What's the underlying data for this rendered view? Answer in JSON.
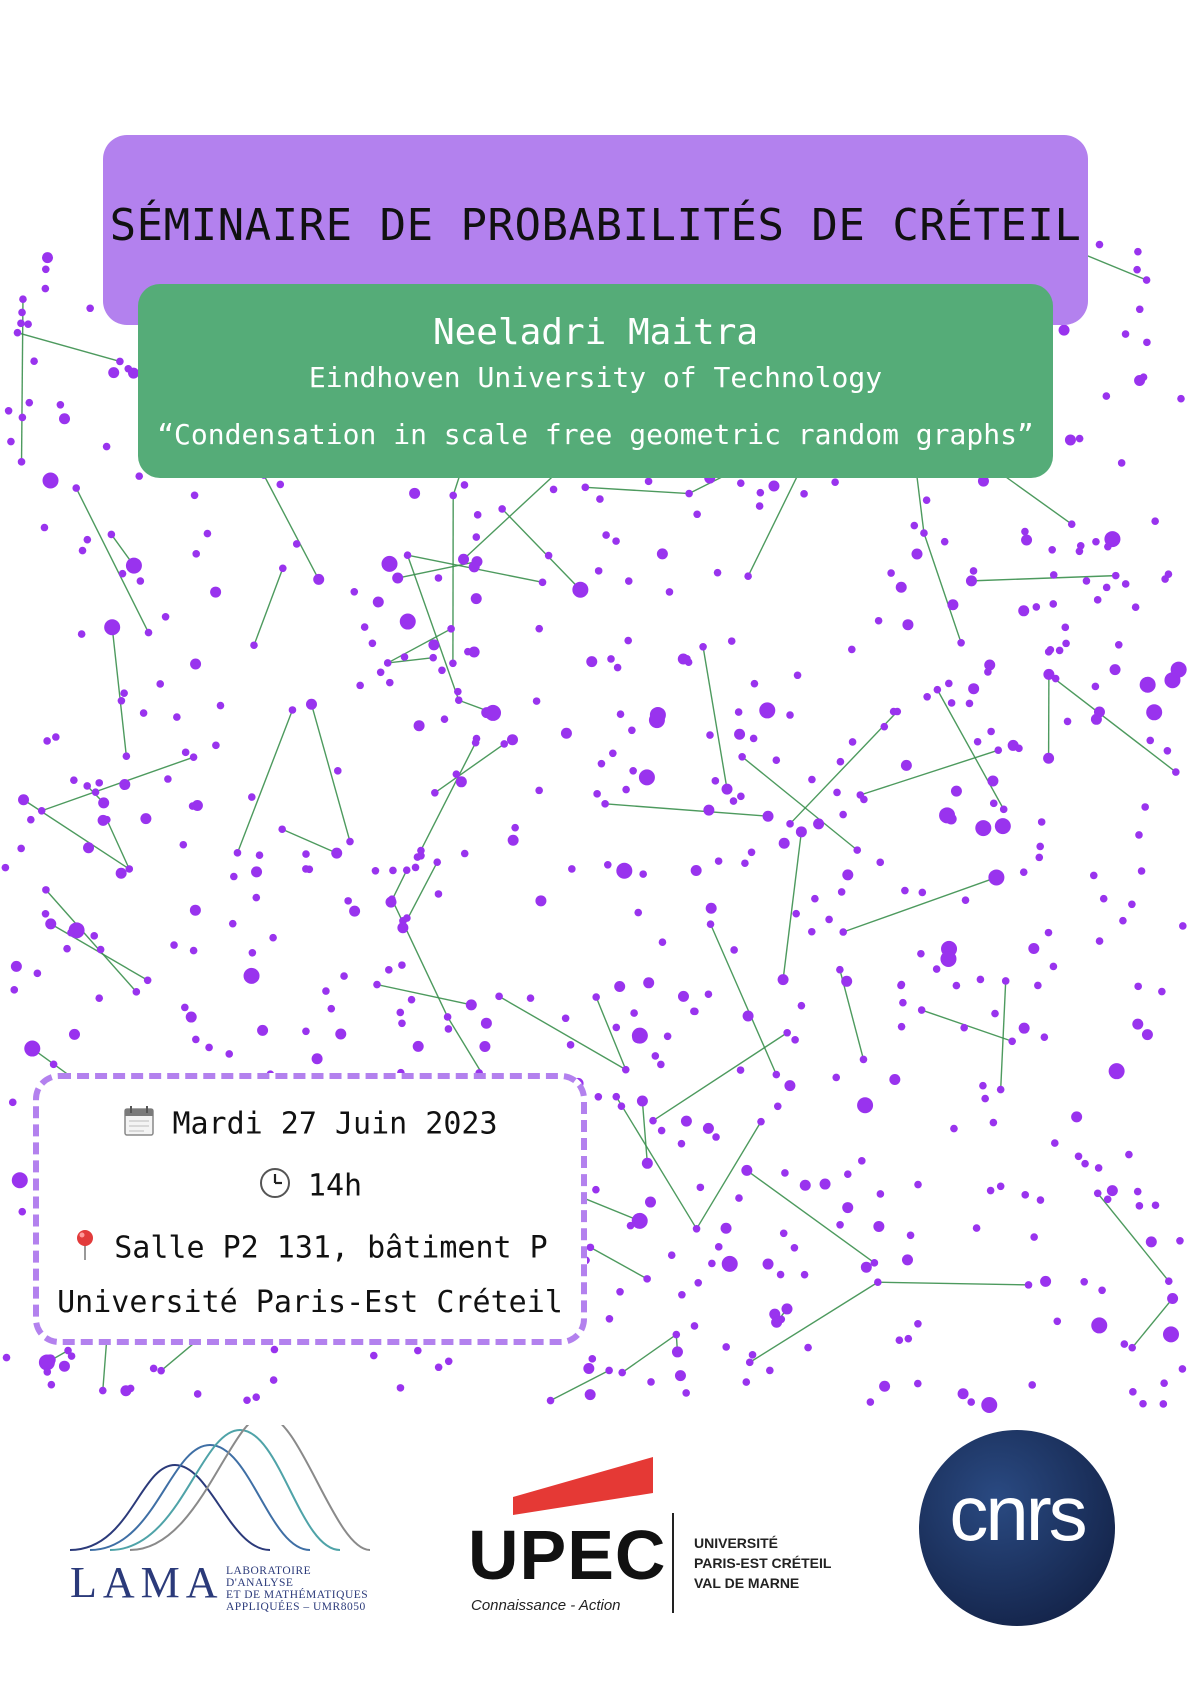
{
  "seminar": {
    "title": "SÉMINAIRE DE PROBABILITÉS DE CRÉTEIL"
  },
  "speaker": {
    "name": "Neeladri Maitra",
    "affiliation": "Eindhoven University of Technology",
    "talk_title": "“Condensation in scale free geometric random graphs”"
  },
  "event": {
    "date": "Mardi 27 Juin 2023",
    "time": "14h",
    "room": "Salle P2 131, bâtiment P",
    "university": "Université Paris-Est Créteil"
  },
  "icons": {
    "date": "calendar-icon",
    "time": "clock-icon",
    "room": "pin-icon"
  },
  "logos": {
    "lama": {
      "word": "LAMA",
      "subtitle_lines": [
        "LABORATOIRE D'ANALYSE",
        "ET DE MATHÉMATIQUES",
        "APPLIQUÉES – UMR8050"
      ]
    },
    "upec": {
      "word": "UPEC",
      "tagline": "Connaissance - Action",
      "lines": [
        "UNIVERSITÉ",
        "PARIS-EST CRÉTEIL",
        "VAL DE MARNE"
      ]
    },
    "cnrs": {
      "word": "cnrs"
    }
  },
  "colors": {
    "title_box": "#b381ee",
    "speaker_box": "#55ac78",
    "graph_edge": "#3a8f4c",
    "graph_node": "#9933ee",
    "info_border": "#b381ee",
    "cnrs_bg": "#1b2e5c",
    "upec_red": "#e53935"
  }
}
